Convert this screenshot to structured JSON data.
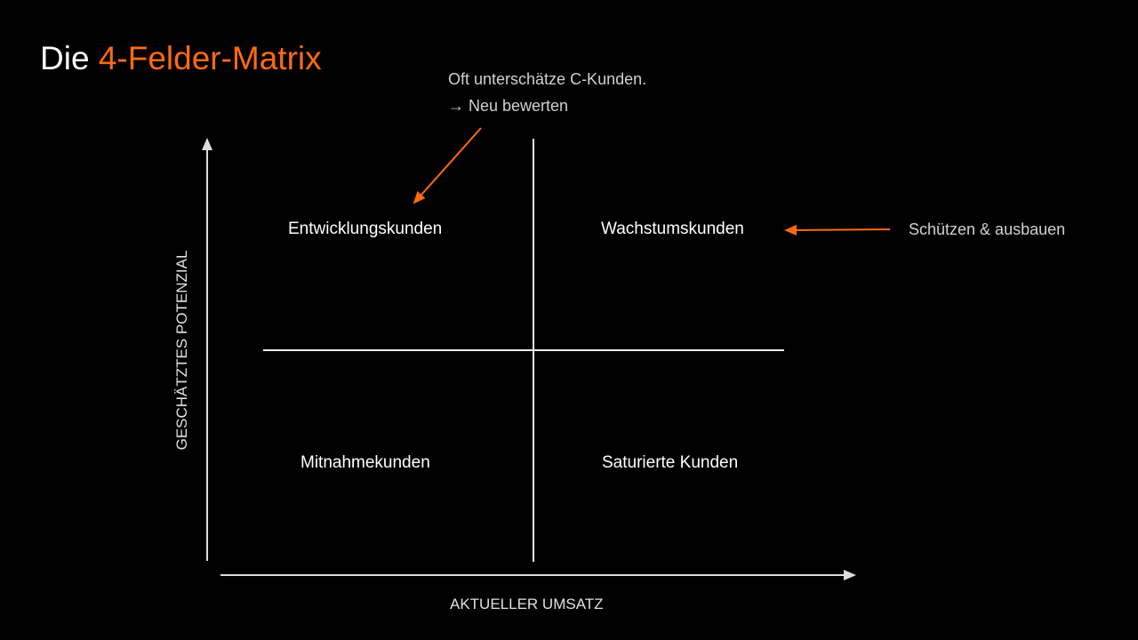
{
  "title": {
    "prefix": "Die",
    "highlight": "4-Felder-Matrix"
  },
  "quadrants": {
    "top_left": "Entwicklungskunden",
    "top_right": "Wachstumskunden",
    "bottom_left": "Mitnahmekunden",
    "bottom_right": "Saturierte Kunden"
  },
  "annotations": {
    "top_left_line1": "Oft unterschätze C-Kunden.",
    "top_left_line2": "→ Neu bewerten",
    "top_right": "Schützen & ausbauen"
  },
  "axes": {
    "y_label": "GESCHÄTZTES POTENZIAL",
    "x_label": "AKTUELLER UMSATZ"
  },
  "colors": {
    "accent": "#ff6a10",
    "background": "#000000",
    "text": "#ffffff"
  }
}
